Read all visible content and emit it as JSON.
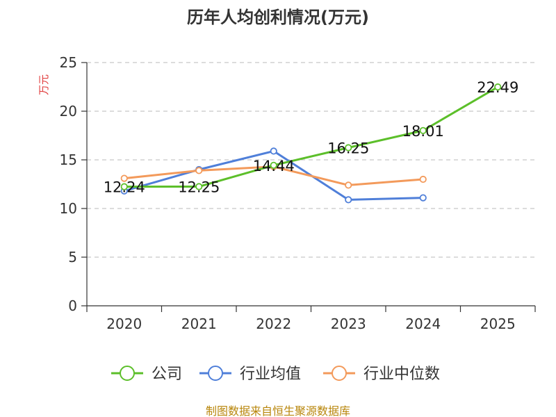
{
  "chart_data": {
    "type": "line",
    "title": "历年人均创利情况(万元)",
    "ylabel": "万元",
    "xlabel": "",
    "ylim": [
      0,
      25
    ],
    "yticks": [
      0,
      5,
      10,
      15,
      20,
      25
    ],
    "categories": [
      "2020",
      "2021",
      "2022",
      "2023",
      "2024",
      "2025"
    ],
    "grid": "horizontal dashed",
    "legend_position": "bottom",
    "series": [
      {
        "name": "公司",
        "color": "#5cbf2a",
        "values": [
          12.24,
          12.25,
          14.44,
          16.25,
          18.01,
          22.49
        ],
        "labels": [
          "12.24",
          "12.25",
          "14.44",
          "16.25",
          "18.01",
          "22.49"
        ]
      },
      {
        "name": "行业均值",
        "color": "#4f7fd9",
        "values": [
          11.8,
          14.0,
          15.9,
          10.9,
          11.1,
          null
        ]
      },
      {
        "name": "行业中位数",
        "color": "#f39a5b",
        "values": [
          13.1,
          13.9,
          14.3,
          12.4,
          13.0,
          null
        ]
      }
    ]
  },
  "footer": "制图数据来自恒生聚源数据库"
}
